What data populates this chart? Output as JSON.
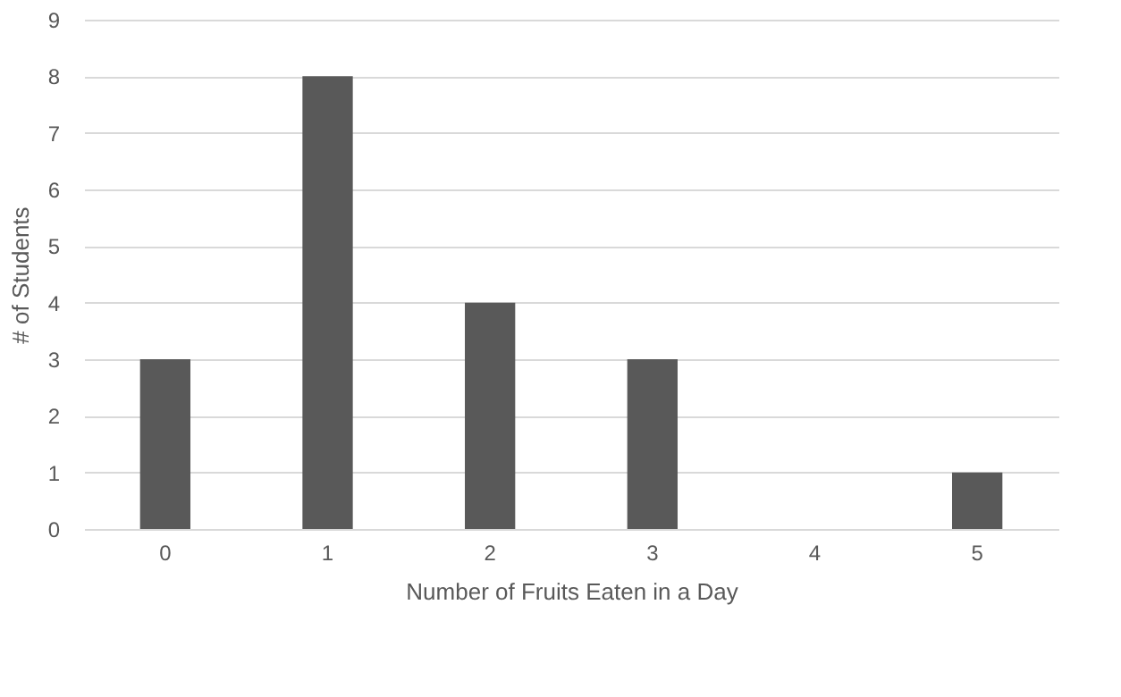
{
  "chart_data": {
    "type": "bar",
    "xlabel": "Number of Fruits Eaten in a Day",
    "ylabel": "# of Students",
    "categories": [
      "0",
      "1",
      "2",
      "3",
      "4",
      "5"
    ],
    "values": [
      3,
      8,
      4,
      3,
      0,
      1
    ],
    "color": "#595959",
    "ylim": [
      0,
      9
    ],
    "yticks": [
      0,
      1,
      2,
      3,
      4,
      5,
      6,
      7,
      8,
      9
    ],
    "grid": "y"
  }
}
